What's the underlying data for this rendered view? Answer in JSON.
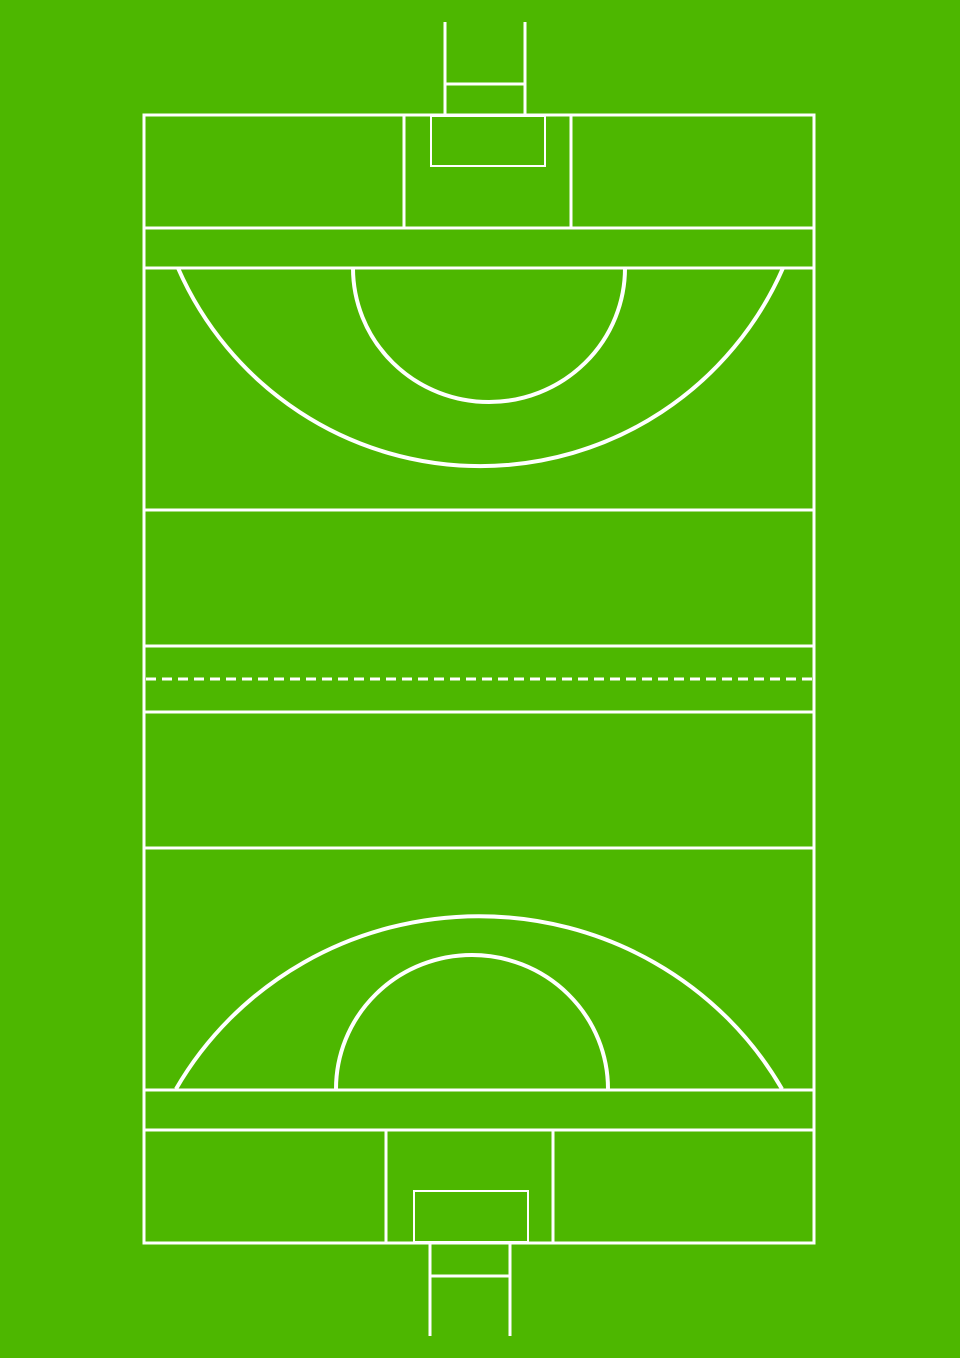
{
  "diagram": {
    "subject": "gaelic-football-hurling-pitch",
    "orientation": "portrait",
    "colors": {
      "grass": "#4db700",
      "lines": "#ffffff",
      "line_shadow": "#3a8a00"
    },
    "elements": {
      "boundary": "touchline-and-endlines",
      "goals": [
        "north-goal-posts",
        "south-goal-posts"
      ],
      "goal_areas": [
        "north-large-rectangle",
        "north-small-rectangle",
        "south-large-rectangle",
        "south-small-rectangle"
      ],
      "arcs": [
        "north-outer-arc",
        "north-inner-arc",
        "south-outer-arc",
        "south-inner-arc"
      ],
      "cross_lines": [
        "north-13m-line",
        "north-20m-line",
        "north-45m-line",
        "north-65m-line",
        "halfway-line",
        "south-65m-line",
        "south-45m-line",
        "south-20m-line",
        "south-13m-line"
      ],
      "halfway_style": "dashed"
    }
  }
}
